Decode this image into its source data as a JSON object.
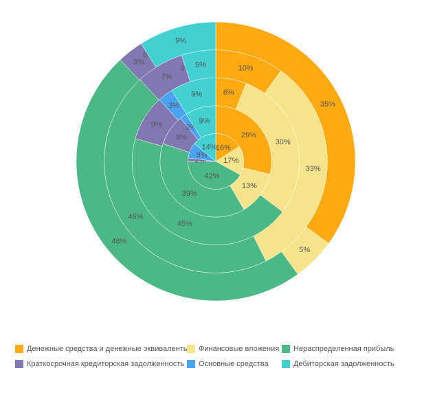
{
  "chart_data": {
    "type": "multi-ring-doughnut",
    "series": [
      {
        "name": "Денежные средства и денежные эквиваленты",
        "color": "#ffaa10",
        "values": [
          16,
          29,
          6,
          10,
          35
        ],
        "value_labels": [
          "16%",
          "29%",
          "6%",
          "10%",
          "35%"
        ]
      },
      {
        "name": "Финансовые вложения",
        "color": "#f5e48c",
        "values": [
          17,
          13,
          30,
          33,
          5
        ],
        "value_labels": [
          "17%",
          "13%",
          "30%",
          "33%",
          "5%"
        ]
      },
      {
        "name": "Нераспределенная прибыль",
        "color": "#4cb886",
        "values": [
          42,
          39,
          45,
          46,
          48
        ],
        "value_labels": [
          "42%",
          "39%",
          "45%",
          "46%",
          "48%"
        ]
      },
      {
        "name": "Краткосрочная кредиторская задолженность",
        "color": "#8078b0",
        "values": [
          2,
          9,
          9,
          7,
          3
        ],
        "value_labels": [
          "2%",
          "9%",
          "9%",
          "7%",
          "3%"
        ]
      },
      {
        "name": "Основные средства",
        "color": "#4aa3f0",
        "values": [
          9,
          2,
          3,
          0,
          0
        ],
        "value_labels": [
          "9%",
          "2%",
          "3%",
          "0%",
          "0%"
        ]
      },
      {
        "name": "Дебиторская задолженность",
        "color": "#42d0d0",
        "values": [
          14,
          9,
          9,
          5,
          9
        ],
        "value_labels": [
          "14%",
          "9%",
          "9%",
          "5%",
          "9%"
        ]
      }
    ],
    "legend": "bottom"
  }
}
